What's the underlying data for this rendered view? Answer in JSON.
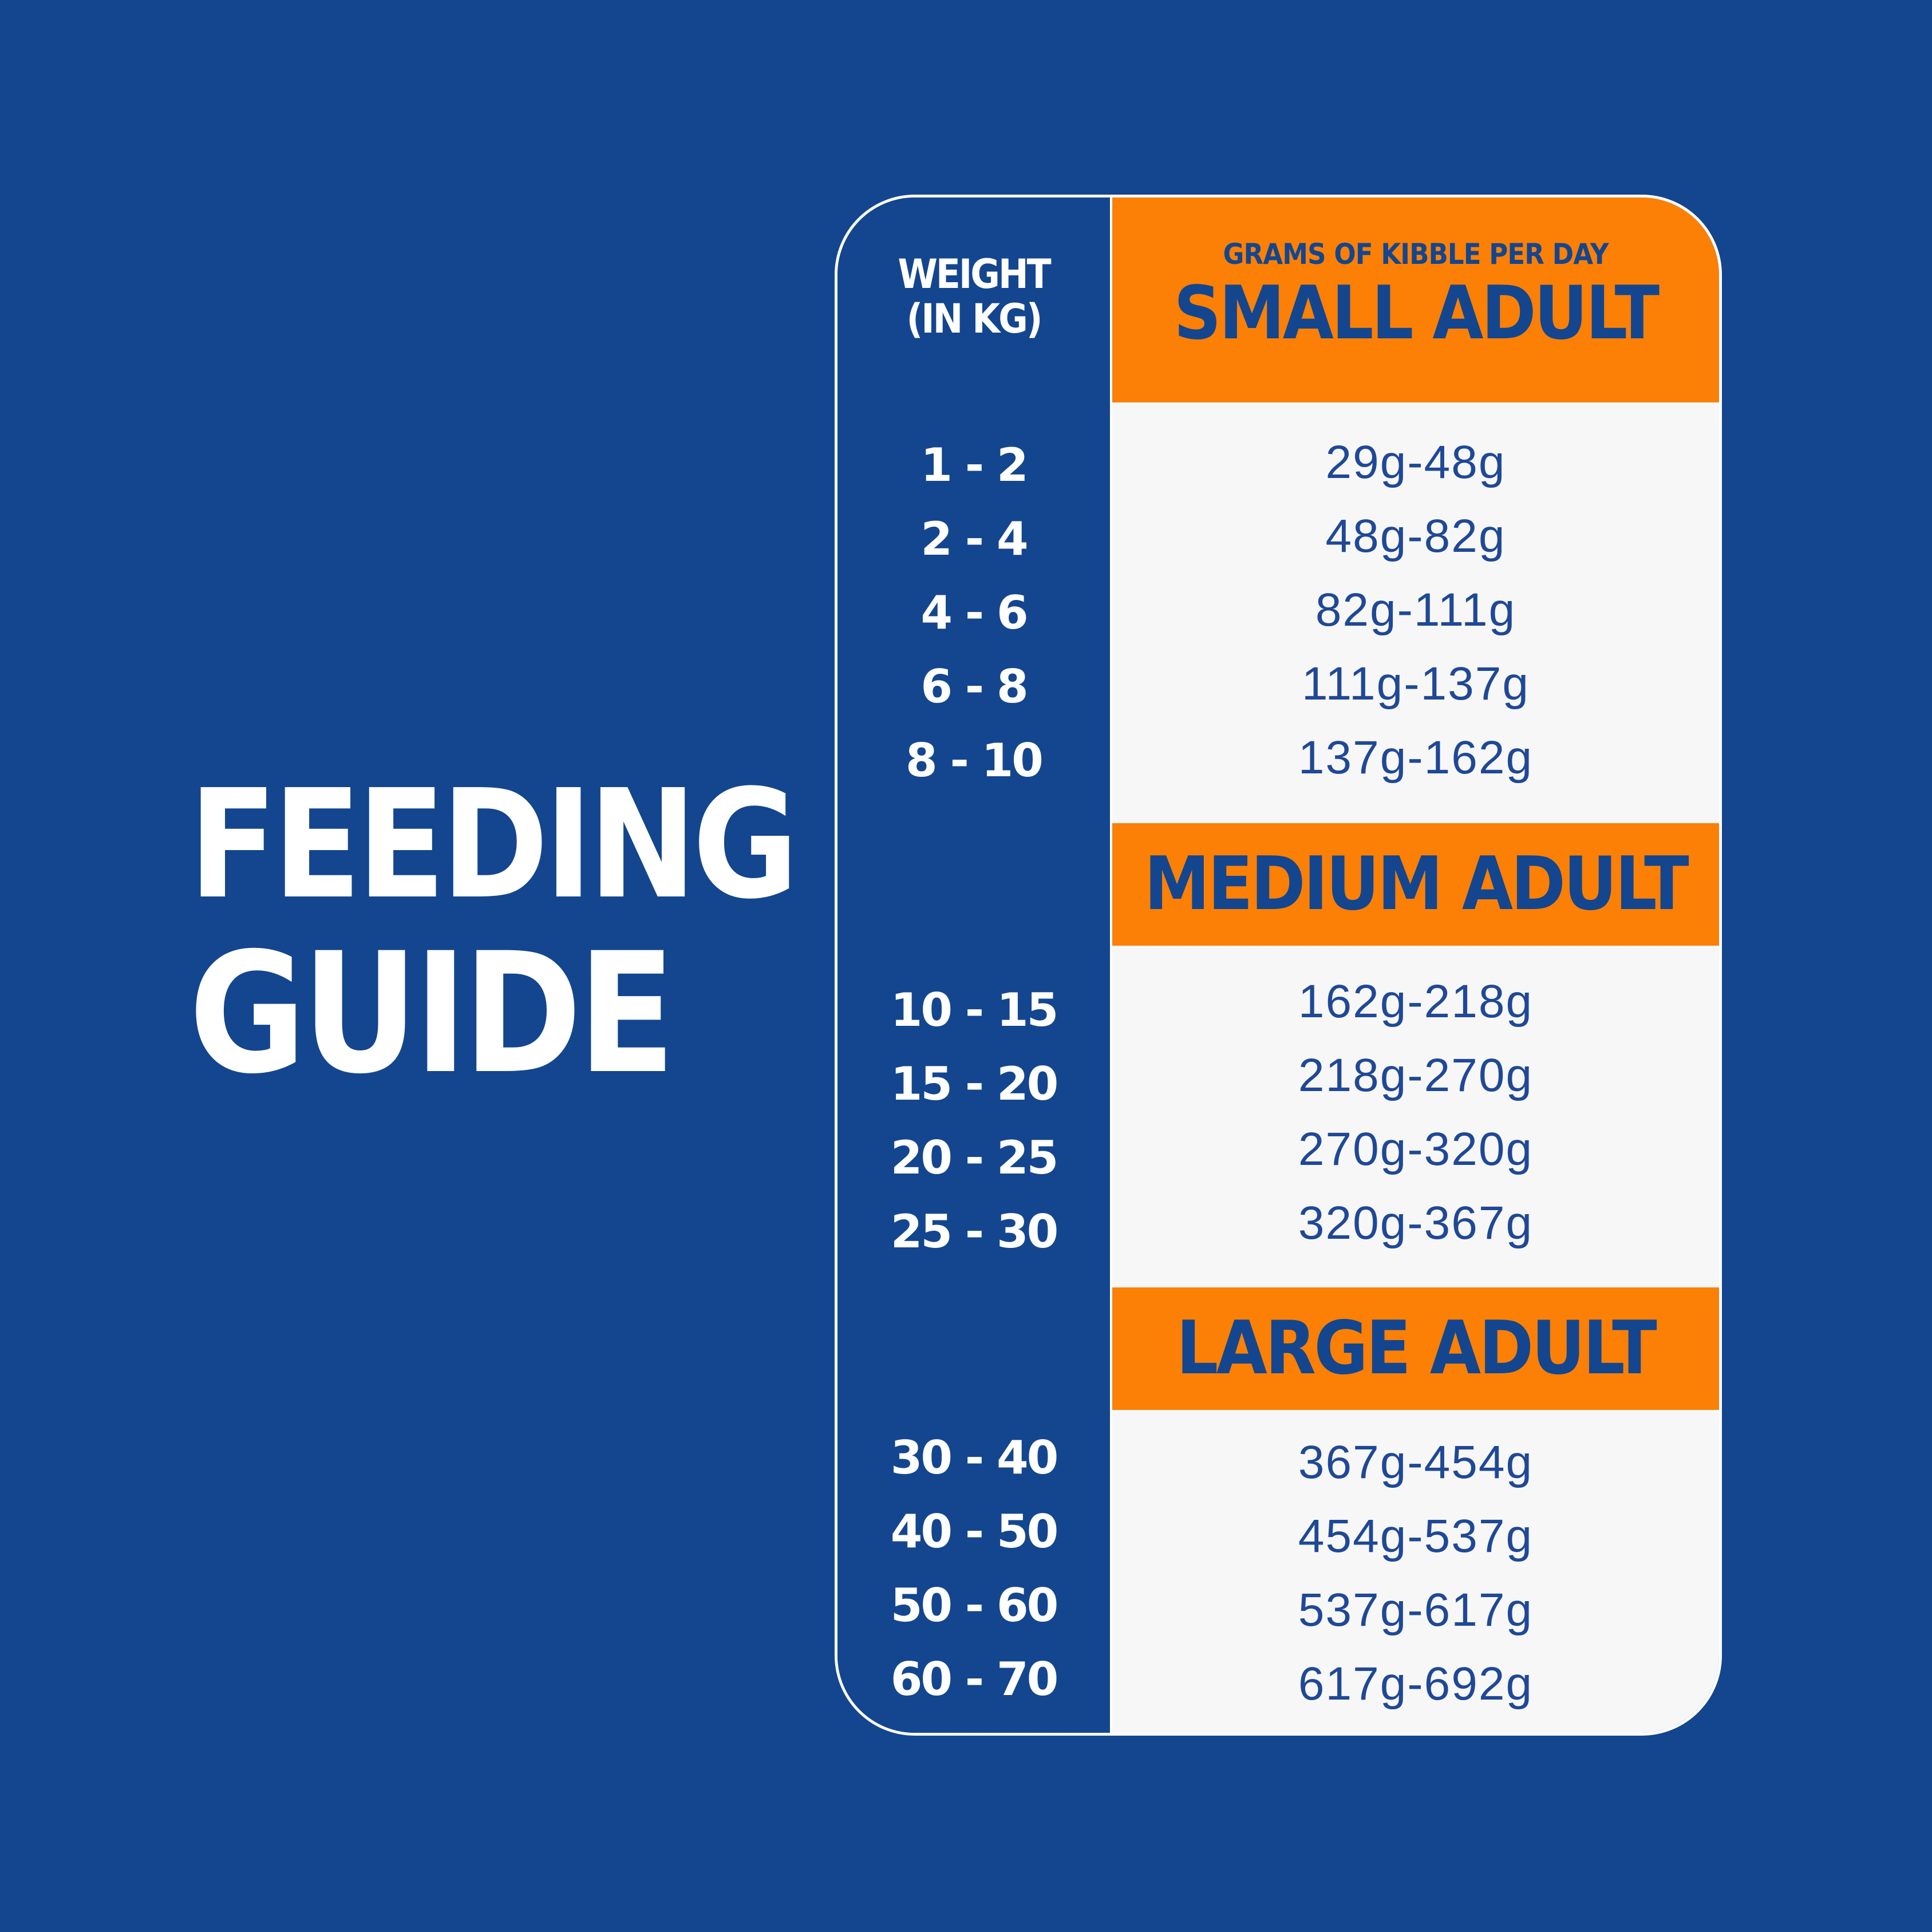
{
  "title": {
    "line1": "FEEDING",
    "line2": "GUIDE"
  },
  "table": {
    "weight_header_line1": "WEIGHT",
    "weight_header_line2": "(IN KG)",
    "grams_header": "GRAMS OF KIBBLE PER DAY",
    "groups": [
      {
        "name": "SMALL ADULT",
        "rows": [
          {
            "weight": "1 - 2",
            "grams": "29g-48g"
          },
          {
            "weight": "2 - 4",
            "grams": "48g-82g"
          },
          {
            "weight": "4 - 6",
            "grams": "82g-111g"
          },
          {
            "weight": "6 - 8",
            "grams": "111g-137g"
          },
          {
            "weight": "8 - 10",
            "grams": "137g-162g"
          }
        ]
      },
      {
        "name": "MEDIUM ADULT",
        "rows": [
          {
            "weight": "10 - 15",
            "grams": "162g-218g"
          },
          {
            "weight": "15 - 20",
            "grams": "218g-270g"
          },
          {
            "weight": "20 - 25",
            "grams": "270g-320g"
          },
          {
            "weight": "25 - 30",
            "grams": "320g-367g"
          }
        ]
      },
      {
        "name": "LARGE ADULT",
        "rows": [
          {
            "weight": "30 - 40",
            "grams": "367g-454g"
          },
          {
            "weight": "40 - 50",
            "grams": "454g-537g"
          },
          {
            "weight": "50 - 60",
            "grams": "537g-617g"
          },
          {
            "weight": "60 - 70",
            "grams": "617g-692g"
          }
        ]
      }
    ]
  },
  "colors": {
    "background": "#13468f",
    "accent_orange": "#fb8005",
    "panel_light": "#f7f7f7",
    "text_white": "#ffffff",
    "text_blue": "#1f4896"
  }
}
